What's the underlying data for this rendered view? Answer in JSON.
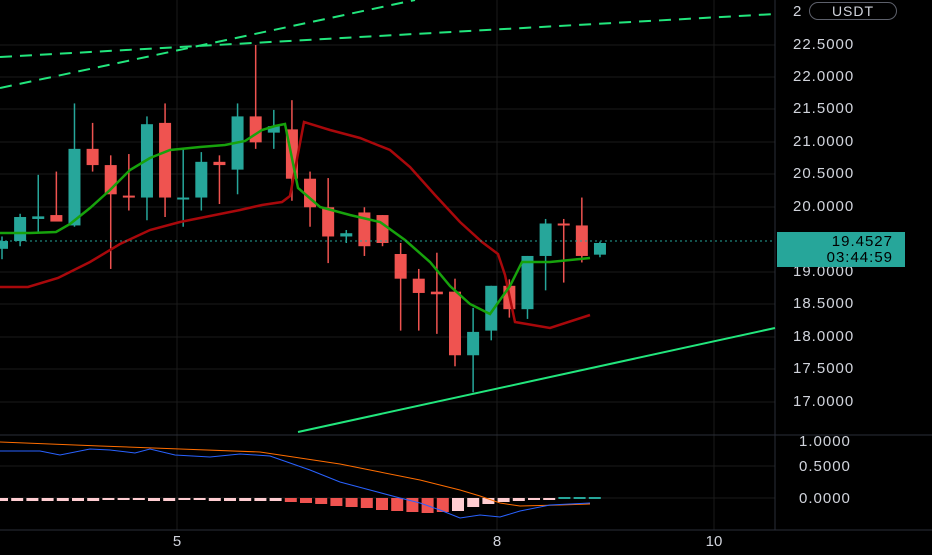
{
  "colors": {
    "up": "#26a69a",
    "down": "#ef5350",
    "ma_fast": "#17a20c",
    "ma_slow": "#a8080b",
    "trendline": "#22e67d",
    "macd_line": "#2962ff",
    "signal_line": "#ff6d00",
    "hist_up": "#26a69a",
    "hist_down_strong": "#ef5350",
    "hist_down_weak": "#ffcdd2",
    "grid": "#1a1a1a"
  },
  "axis": {
    "currency": "USDT",
    "last_price": "19.4527",
    "countdown": "03:44:59",
    "top_cut_label": "2",
    "price_ticks": [
      "22.5000",
      "22.0000",
      "21.5000",
      "21.0000",
      "20.5000",
      "20.0000",
      "19.0000",
      "18.5000",
      "18.0000",
      "17.5000",
      "17.0000"
    ],
    "indicator_ticks": [
      "1.0000",
      "0.5000",
      "0.0000"
    ],
    "time_ticks": [
      "5",
      "8",
      "10"
    ]
  },
  "chart_data": {
    "type": "candlestick",
    "ylim": [
      16.9,
      22.95
    ],
    "candles": [
      {
        "o": 19.36,
        "h": 19.55,
        "l": 19.2,
        "c": 19.48
      },
      {
        "o": 19.48,
        "h": 19.9,
        "l": 19.4,
        "c": 19.85
      },
      {
        "o": 19.82,
        "h": 20.5,
        "l": 19.6,
        "c": 19.86
      },
      {
        "o": 19.88,
        "h": 20.55,
        "l": 19.82,
        "c": 19.78
      },
      {
        "o": 19.72,
        "h": 21.6,
        "l": 19.7,
        "c": 20.9
      },
      {
        "o": 20.9,
        "h": 21.3,
        "l": 20.55,
        "c": 20.65
      },
      {
        "o": 20.65,
        "h": 20.8,
        "l": 19.05,
        "c": 20.2
      },
      {
        "o": 20.18,
        "h": 20.82,
        "l": 19.95,
        "c": 20.15
      },
      {
        "o": 20.15,
        "h": 21.4,
        "l": 19.8,
        "c": 21.28
      },
      {
        "o": 21.3,
        "h": 21.6,
        "l": 19.85,
        "c": 20.15
      },
      {
        "o": 20.15,
        "h": 20.9,
        "l": 19.7,
        "c": 20.15
      },
      {
        "o": 20.15,
        "h": 20.85,
        "l": 19.95,
        "c": 20.7
      },
      {
        "o": 20.7,
        "h": 20.8,
        "l": 20.05,
        "c": 20.65
      },
      {
        "o": 20.58,
        "h": 21.6,
        "l": 20.2,
        "c": 21.4
      },
      {
        "o": 21.4,
        "h": 22.5,
        "l": 20.9,
        "c": 21.0
      },
      {
        "o": 21.15,
        "h": 21.5,
        "l": 20.9,
        "c": 21.25
      },
      {
        "o": 21.2,
        "h": 21.65,
        "l": 20.1,
        "c": 20.44
      },
      {
        "o": 20.44,
        "h": 20.55,
        "l": 19.7,
        "c": 20.0
      },
      {
        "o": 20.0,
        "h": 20.45,
        "l": 19.14,
        "c": 19.55
      },
      {
        "o": 19.55,
        "h": 19.65,
        "l": 19.45,
        "c": 19.6
      },
      {
        "o": 19.92,
        "h": 20.0,
        "l": 19.25,
        "c": 19.4
      },
      {
        "o": 19.88,
        "h": 19.88,
        "l": 19.4,
        "c": 19.45
      },
      {
        "o": 19.28,
        "h": 19.45,
        "l": 18.1,
        "c": 18.9
      },
      {
        "o": 18.9,
        "h": 19.05,
        "l": 18.1,
        "c": 18.68
      },
      {
        "o": 18.7,
        "h": 19.3,
        "l": 18.05,
        "c": 18.66
      },
      {
        "o": 18.7,
        "h": 18.9,
        "l": 17.55,
        "c": 17.72
      },
      {
        "o": 17.72,
        "h": 18.45,
        "l": 17.15,
        "c": 18.08
      },
      {
        "o": 18.1,
        "h": 18.79,
        "l": 17.95,
        "c": 18.79
      },
      {
        "o": 18.79,
        "h": 18.89,
        "l": 18.3,
        "c": 18.43
      },
      {
        "o": 18.43,
        "h": 19.25,
        "l": 18.28,
        "c": 19.25
      },
      {
        "o": 19.25,
        "h": 19.82,
        "l": 18.72,
        "c": 19.75
      },
      {
        "o": 19.75,
        "h": 19.82,
        "l": 18.84,
        "c": 19.72
      },
      {
        "o": 19.72,
        "h": 20.15,
        "l": 19.15,
        "c": 19.25
      },
      {
        "o": 19.27,
        "h": 19.47,
        "l": 19.23,
        "c": 19.45
      }
    ]
  }
}
